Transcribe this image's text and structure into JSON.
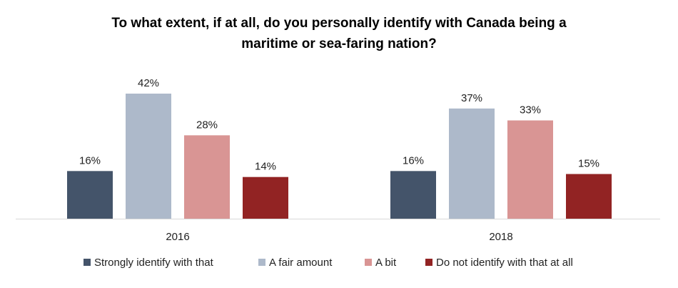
{
  "chart_data": {
    "type": "bar",
    "title_lines": [
      "To what extent, if at all, do you personally identify with Canada being a",
      "maritime or sea-faring nation?"
    ],
    "categories": [
      "2016",
      "2018"
    ],
    "series": [
      {
        "name": "Strongly identify with that",
        "color": "#44546a",
        "values": [
          16,
          16
        ],
        "labels": [
          "16%",
          "16%"
        ]
      },
      {
        "name": "A fair amount",
        "color": "#adb9ca",
        "values": [
          42,
          37
        ],
        "labels": [
          "42%",
          "37%"
        ]
      },
      {
        "name": "A bit",
        "color": "#d99594",
        "values": [
          28,
          33
        ],
        "labels": [
          "28%",
          "33%"
        ]
      },
      {
        "name": "Do not identify with that at all",
        "color": "#922323",
        "values": [
          14,
          15
        ],
        "labels": [
          "14%",
          "15%"
        ]
      }
    ],
    "xlabel": "",
    "ylabel": "",
    "ylim": [
      0,
      42
    ],
    "grid": false,
    "legend_position": "bottom"
  }
}
